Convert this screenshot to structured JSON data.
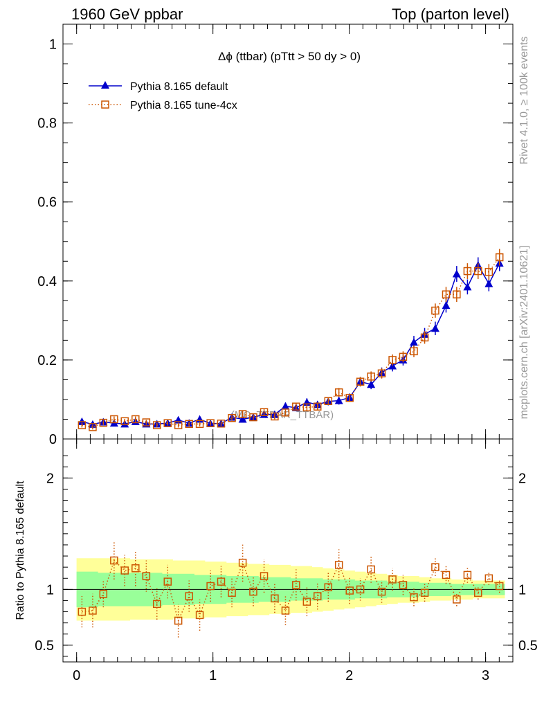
{
  "header": {
    "left": "1960 GeV ppbar",
    "right": "Top (parton level)"
  },
  "side_labels": {
    "rivet": "Rivet 4.1.0, ≥ 100k events",
    "mcplots": "mcplots.cern.ch [arXiv:2401.10621]"
  },
  "chart_data": [
    {
      "type": "line",
      "panel": "main",
      "title": "Δϕ (ttbar) (pTtt > 50 dy > 0)",
      "watermark": "(MC_TTBAR_TTBAR)",
      "xlabel": "",
      "ylabel": "",
      "xlim": [
        -0.1,
        3.2
      ],
      "ylim": [
        0,
        1.05
      ],
      "yticks": [
        0,
        0.2,
        0.4,
        0.6,
        0.8,
        1
      ],
      "ytick_labels": [
        "0",
        "0.2",
        "0.4",
        "0.6",
        "0.8",
        "1"
      ],
      "legend_position": "top-left",
      "x": [
        0.039,
        0.118,
        0.196,
        0.275,
        0.353,
        0.432,
        0.511,
        0.589,
        0.668,
        0.746,
        0.825,
        0.903,
        0.982,
        1.06,
        1.139,
        1.218,
        1.296,
        1.375,
        1.453,
        1.532,
        1.61,
        1.689,
        1.767,
        1.846,
        1.924,
        2.003,
        2.081,
        2.16,
        2.238,
        2.317,
        2.395,
        2.474,
        2.553,
        2.631,
        2.71,
        2.788,
        2.867,
        2.945,
        3.024,
        3.102
      ],
      "series": [
        {
          "name": "Pythia 8.165 default",
          "color": "#0000cc",
          "marker": "triangle",
          "line": "solid",
          "values": [
            0.044,
            0.037,
            0.043,
            0.04,
            0.038,
            0.044,
            0.038,
            0.038,
            0.04,
            0.048,
            0.04,
            0.05,
            0.039,
            0.039,
            0.055,
            0.05,
            0.055,
            0.062,
            0.062,
            0.083,
            0.079,
            0.093,
            0.087,
            0.095,
            0.097,
            0.105,
            0.145,
            0.138,
            0.168,
            0.185,
            0.2,
            0.245,
            0.265,
            0.28,
            0.338,
            0.418,
            0.385,
            0.44,
            0.393,
            0.445
          ],
          "errors": [
            0.006,
            0.006,
            0.006,
            0.006,
            0.006,
            0.006,
            0.006,
            0.006,
            0.006,
            0.007,
            0.006,
            0.007,
            0.006,
            0.006,
            0.007,
            0.007,
            0.007,
            0.008,
            0.008,
            0.009,
            0.009,
            0.01,
            0.009,
            0.01,
            0.01,
            0.01,
            0.012,
            0.012,
            0.013,
            0.014,
            0.014,
            0.016,
            0.016,
            0.017,
            0.018,
            0.02,
            0.019,
            0.02,
            0.019,
            0.02
          ]
        },
        {
          "name": "Pythia 8.165 tune-4cx",
          "color": "#cc5500",
          "marker": "square",
          "line": "dotted",
          "values": [
            0.035,
            0.03,
            0.041,
            0.05,
            0.045,
            0.05,
            0.042,
            0.035,
            0.04,
            0.035,
            0.038,
            0.038,
            0.04,
            0.039,
            0.053,
            0.063,
            0.055,
            0.068,
            0.057,
            0.067,
            0.082,
            0.08,
            0.082,
            0.096,
            0.118,
            0.104,
            0.145,
            0.158,
            0.166,
            0.2,
            0.208,
            0.222,
            0.257,
            0.325,
            0.366,
            0.366,
            0.425,
            0.425,
            0.423,
            0.46
          ],
          "errors": [
            0.006,
            0.006,
            0.006,
            0.007,
            0.006,
            0.007,
            0.006,
            0.006,
            0.006,
            0.006,
            0.006,
            0.006,
            0.006,
            0.006,
            0.007,
            0.008,
            0.007,
            0.008,
            0.007,
            0.008,
            0.009,
            0.009,
            0.009,
            0.01,
            0.011,
            0.01,
            0.012,
            0.013,
            0.013,
            0.014,
            0.014,
            0.015,
            0.016,
            0.018,
            0.019,
            0.019,
            0.02,
            0.02,
            0.02,
            0.021
          ]
        }
      ]
    },
    {
      "type": "line",
      "panel": "ratio",
      "ylabel": "Ratio to Pythia 8.165 default",
      "xlim": [
        -0.1,
        3.2
      ],
      "ylim": [
        0.35,
        2.35
      ],
      "xticks": [
        0,
        1,
        2,
        3
      ],
      "xtick_labels": [
        "0",
        "1",
        "2",
        "3"
      ],
      "yticks": [
        0.5,
        1,
        2
      ],
      "ytick_labels": [
        "0.5",
        "1",
        "2"
      ],
      "reference_line": 1,
      "band_inner_halfwidth": [
        0.16,
        0.16,
        0.15,
        0.15,
        0.15,
        0.15,
        0.15,
        0.15,
        0.14,
        0.14,
        0.14,
        0.13,
        0.13,
        0.13,
        0.12,
        0.12,
        0.12,
        0.11,
        0.11,
        0.11,
        0.1,
        0.1,
        0.1,
        0.09,
        0.09,
        0.09,
        0.08,
        0.08,
        0.08,
        0.07,
        0.07,
        0.07,
        0.06,
        0.06,
        0.06,
        0.05,
        0.05,
        0.05,
        0.05,
        0.05
      ],
      "band_outer_halfwidth": [
        0.28,
        0.28,
        0.28,
        0.28,
        0.28,
        0.27,
        0.27,
        0.27,
        0.27,
        0.26,
        0.26,
        0.26,
        0.25,
        0.25,
        0.24,
        0.24,
        0.23,
        0.23,
        0.22,
        0.22,
        0.21,
        0.21,
        0.2,
        0.19,
        0.18,
        0.17,
        0.16,
        0.15,
        0.14,
        0.13,
        0.12,
        0.12,
        0.11,
        0.1,
        0.1,
        0.09,
        0.09,
        0.08,
        0.08,
        0.08
      ],
      "series": [
        {
          "name": "Pythia 8.165 tune-4cx / Pythia 8.165 default",
          "color": "#cc5500",
          "marker": "square",
          "line": "dotted",
          "values": [
            0.8,
            0.81,
            0.96,
            1.26,
            1.17,
            1.19,
            1.12,
            0.87,
            1.07,
            0.72,
            0.94,
            0.77,
            1.03,
            1.07,
            0.97,
            1.24,
            0.98,
            1.12,
            0.92,
            0.81,
            1.04,
            0.89,
            0.94,
            1.02,
            1.22,
            0.99,
            1.0,
            1.18,
            0.98,
            1.09,
            1.04,
            0.93,
            0.97,
            1.2,
            1.13,
            0.91,
            1.13,
            0.97,
            1.1,
            1.03
          ],
          "errors": [
            0.14,
            0.15,
            0.12,
            0.17,
            0.14,
            0.16,
            0.14,
            0.14,
            0.15,
            0.15,
            0.14,
            0.14,
            0.14,
            0.14,
            0.13,
            0.17,
            0.13,
            0.15,
            0.13,
            0.13,
            0.14,
            0.13,
            0.12,
            0.13,
            0.14,
            0.12,
            0.1,
            0.12,
            0.1,
            0.1,
            0.09,
            0.08,
            0.08,
            0.08,
            0.08,
            0.06,
            0.07,
            0.06,
            0.06,
            0.06
          ]
        }
      ]
    }
  ]
}
